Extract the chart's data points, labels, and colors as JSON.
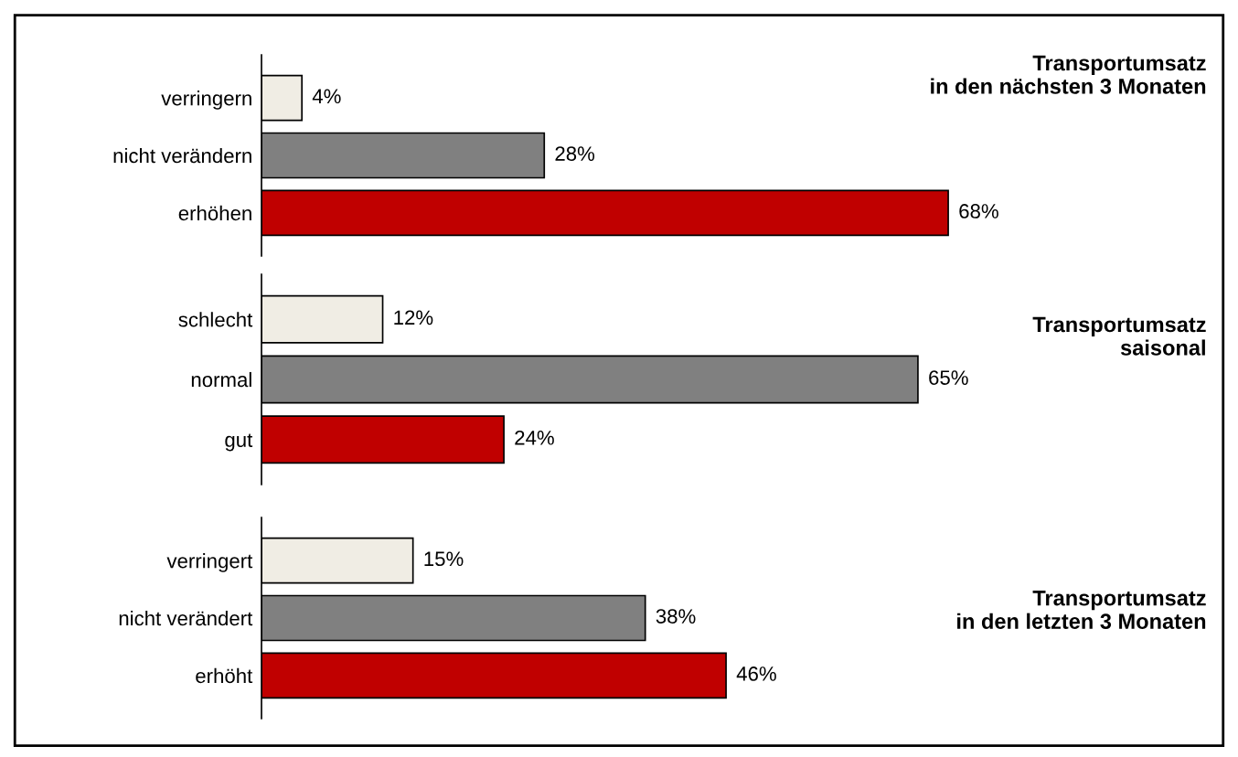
{
  "chart_data": [
    {
      "type": "bar",
      "orientation": "horizontal",
      "annotations": [
        "Transportumsatz\n  in den nächsten 3 Monaten"
      ],
      "categories": [
        "verringern",
        "nicht verändern",
        "erhöhen"
      ],
      "values": [
        4,
        28,
        68
      ],
      "value_labels": [
        "4%",
        "28%",
        "68%"
      ],
      "colors": [
        "#f0ede4",
        "#808080",
        "#c00000"
      ],
      "grid": false,
      "legend": false
    },
    {
      "type": "bar",
      "orientation": "horizontal",
      "annotations": [
        "Transportumsatz\nsaisonal"
      ],
      "categories": [
        "schlecht",
        "normal",
        "gut"
      ],
      "values": [
        12,
        65,
        24
      ],
      "value_labels": [
        "12%",
        "65%",
        "24%"
      ],
      "colors": [
        "#f0ede4",
        "#808080",
        "#c00000"
      ],
      "grid": false,
      "legend": false
    },
    {
      "type": "bar",
      "orientation": "horizontal",
      "annotations": [
        "Transportumsatz\nin den letzten 3 Monaten"
      ],
      "categories": [
        "verringert",
        "nicht verändert",
        "erhöht"
      ],
      "values": [
        15,
        38,
        46
      ],
      "value_labels": [
        "15%",
        "38%",
        "46%"
      ],
      "colors": [
        "#f0ede4",
        "#808080",
        "#c00000"
      ],
      "grid": false,
      "legend": false
    }
  ]
}
